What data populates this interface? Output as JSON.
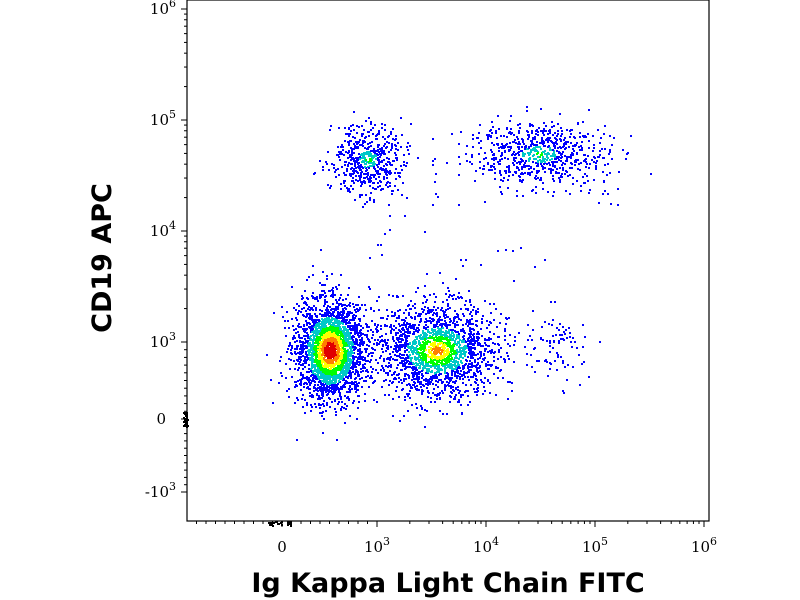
{
  "chart_data": {
    "type": "scatter",
    "style": "density pseudocolor dot plot (flow cytometry)",
    "xlabel": "Ig Kappa Light Chain FITC",
    "ylabel": "CD19 APC",
    "x_scale": "biexponential",
    "y_scale": "biexponential",
    "xlim": [
      -300,
      1000000
    ],
    "ylim": [
      -2000,
      1000000
    ],
    "x_ticks": [
      {
        "value": 0,
        "base": "0",
        "exp": ""
      },
      {
        "value": 1000,
        "base": "10",
        "exp": "3"
      },
      {
        "value": 10000,
        "base": "10",
        "exp": "4"
      },
      {
        "value": 100000,
        "base": "10",
        "exp": "5"
      },
      {
        "value": 1000000,
        "base": "10",
        "exp": "6"
      }
    ],
    "y_ticks": [
      {
        "value": -1000,
        "base": "-10",
        "exp": "3"
      },
      {
        "value": 0,
        "base": "0",
        "exp": ""
      },
      {
        "value": 1000,
        "base": "10",
        "exp": "3"
      },
      {
        "value": 10000,
        "base": "10",
        "exp": "4"
      },
      {
        "value": 100000,
        "base": "10",
        "exp": "5"
      },
      {
        "value": 1000000,
        "base": "10",
        "exp": "6"
      }
    ],
    "populations": [
      {
        "x_center": 500,
        "y_center": 900,
        "density": "highest"
      },
      {
        "x_center": 3500,
        "y_center": 900,
        "density": "high"
      },
      {
        "x_center": 900,
        "y_center": 45000,
        "density": "medium"
      },
      {
        "x_center": 30000,
        "y_center": 50000,
        "density": "medium"
      }
    ],
    "grid": false,
    "legend": "none",
    "colors": {
      "low": "#0000ff",
      "mid": "#00c8c8",
      "midhigh": "#00ff00",
      "high": "#ffff00",
      "veryhigh": "#ff8000",
      "peak": "#e00000"
    }
  }
}
